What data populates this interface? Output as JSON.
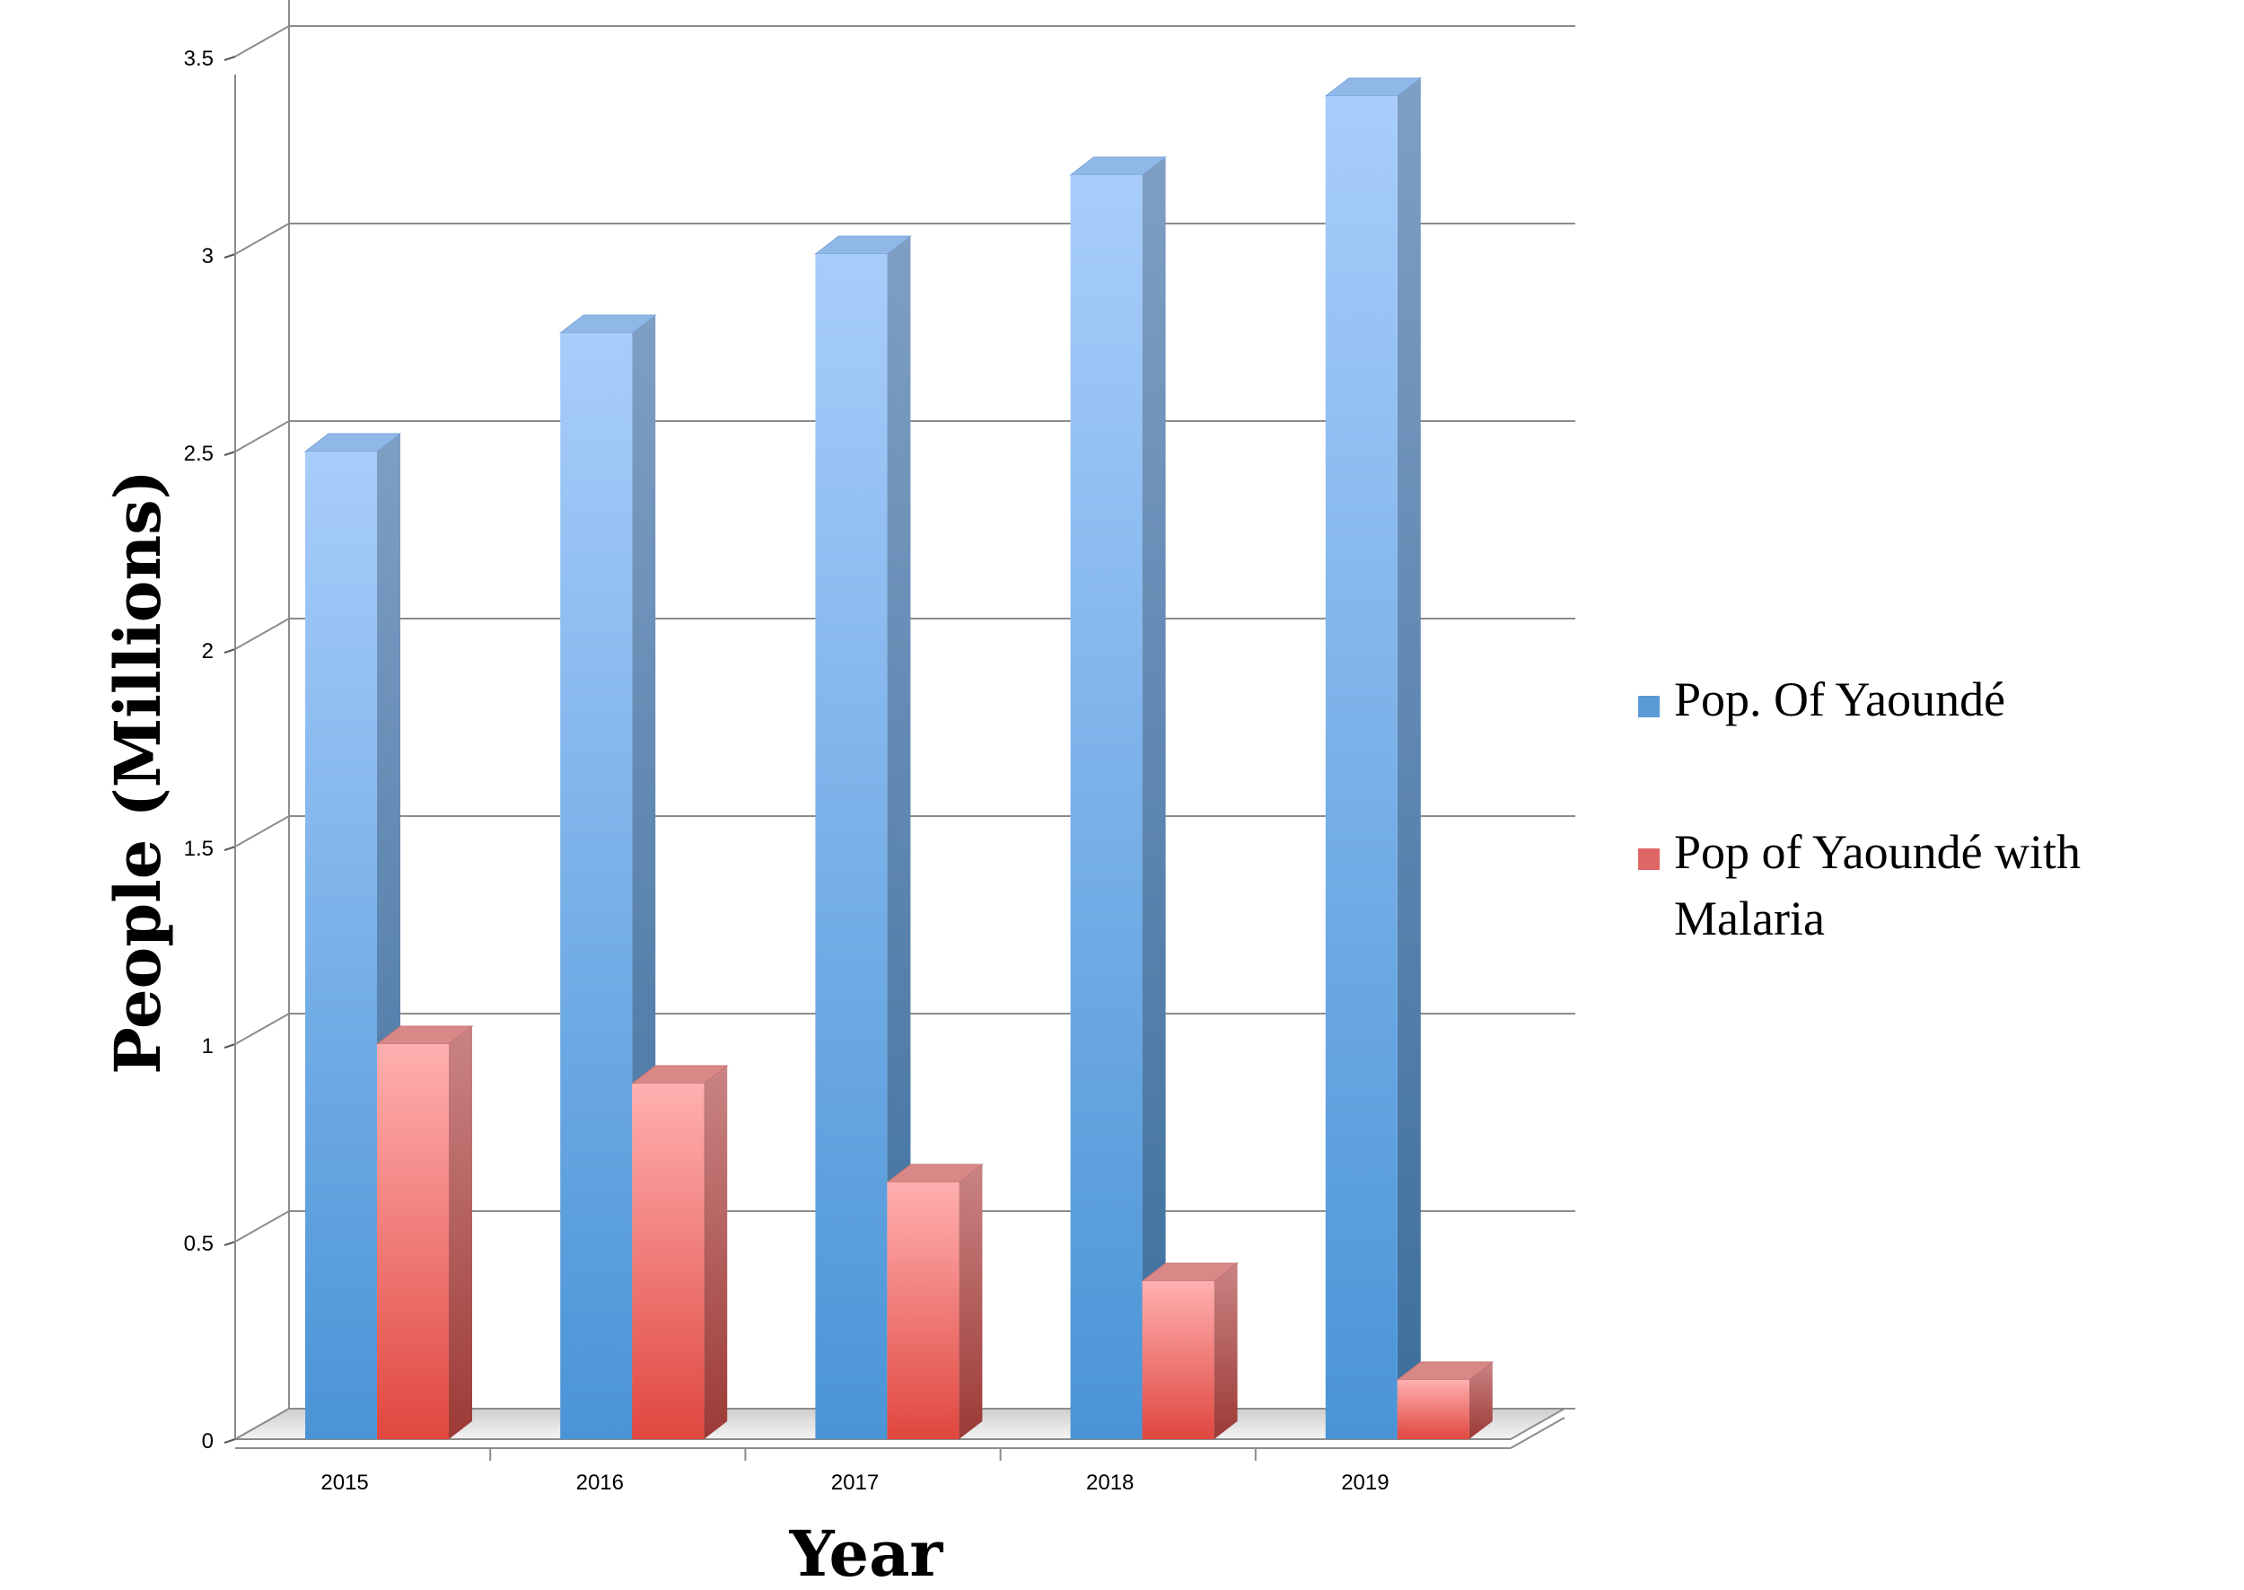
{
  "chart_data": {
    "type": "bar",
    "style": "3d-clustered-column",
    "categories": [
      "2015",
      "2016",
      "2017",
      "2018",
      "2019"
    ],
    "series": [
      {
        "name": "Pop. Of Yaoundé",
        "values": [
          2.5,
          2.8,
          3.0,
          3.2,
          3.4
        ],
        "color": "#5b9bd5"
      },
      {
        "name": "Pop of Yaoundé with Malaria",
        "values": [
          1.0,
          0.9,
          0.65,
          0.4,
          0.15
        ],
        "color": "#e06666"
      }
    ],
    "title": "",
    "xlabel": "Year",
    "ylabel": "People (Millions)",
    "ylim": [
      0,
      3.5
    ],
    "yticks": [
      "0",
      "0.5",
      "1",
      "1.5",
      "2",
      "2.5",
      "3",
      "3.5"
    ],
    "grid": true,
    "legend_position": "right"
  }
}
